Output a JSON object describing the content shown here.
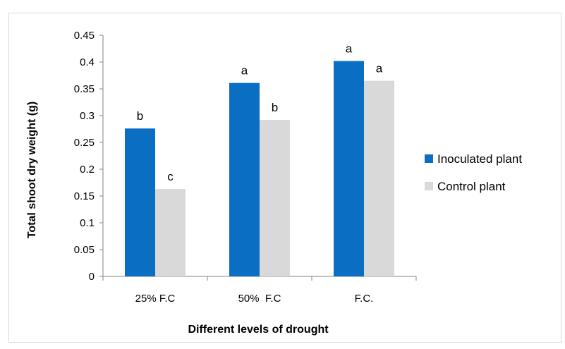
{
  "chart_data": {
    "type": "bar",
    "categories": [
      "25% F.C",
      "50%  F.C",
      "F.C."
    ],
    "series": [
      {
        "name": "Inoculated plant",
        "color": "#0a6fc2",
        "values": [
          0.276,
          0.361,
          0.402
        ],
        "labels": [
          "b",
          "a",
          "a"
        ]
      },
      {
        "name": "Control plant",
        "color": "#d9d9d9",
        "values": [
          0.163,
          0.292,
          0.365
        ],
        "labels": [
          "c",
          "b",
          "a"
        ]
      }
    ],
    "title": "",
    "xlabel": "Different levels of drought",
    "ylabel": "Total shoot dry weight (g)",
    "ylim": [
      0,
      0.45
    ],
    "yticks": [
      "0",
      "0.05",
      "0.1",
      "0.15",
      "0.2",
      "0.25",
      "0.3",
      "0.35",
      "0.4",
      "0.45"
    ],
    "grid": false,
    "legend_position": "right"
  }
}
